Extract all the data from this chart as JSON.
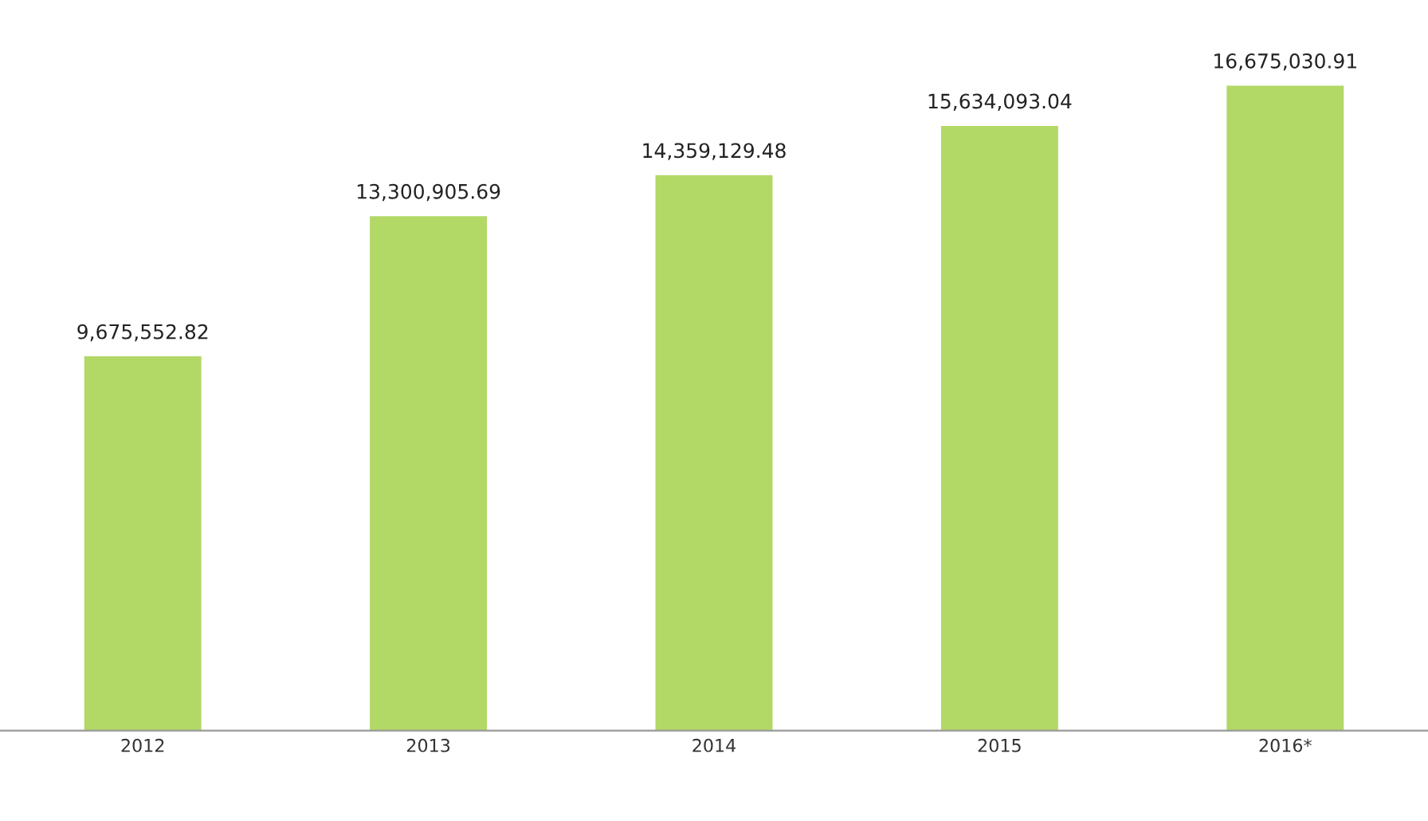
{
  "chart_data": {
    "type": "bar",
    "categories": [
      "2012",
      "2013",
      "2014",
      "2015",
      "2016*"
    ],
    "values": [
      9675552.82,
      13300905.69,
      14359129.48,
      15634093.04,
      16675030.91
    ],
    "value_labels": [
      "9,675,552.82",
      "13,300,905.69",
      "14,359,129.48",
      "15,634,093.04",
      "16,675,030.91"
    ],
    "color": "#b2d866",
    "tick_labels": "x",
    "grid": false,
    "legend": false
  }
}
